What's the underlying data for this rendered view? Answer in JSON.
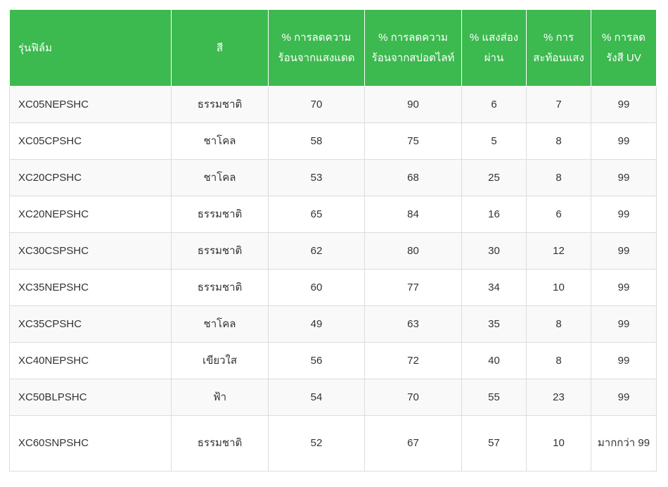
{
  "table": {
    "headers": [
      "รุ่นฟิล์ม",
      "สี",
      "% การลดความร้อนจากแสงแดด",
      "% การลดความร้อนจากสปอตไลท์",
      "% แสงส่องผ่าน",
      "% การสะท้อนแสง",
      "% การลดรังสี UV"
    ],
    "rows": [
      [
        "XC05NEPSHC",
        "ธรรมชาติ",
        "70",
        "90",
        "6",
        "7",
        "99"
      ],
      [
        "XC05CPSHC",
        "ชาโคล",
        "58",
        "75",
        "5",
        "8",
        "99"
      ],
      [
        "XC20CPSHC",
        "ชาโคล",
        "53",
        "68",
        "25",
        "8",
        "99"
      ],
      [
        "XC20NEPSHC",
        "ธรรมชาติ",
        "65",
        "84",
        "16",
        "6",
        "99"
      ],
      [
        "XC30CSPSHC",
        "ธรรมชาติ",
        "62",
        "80",
        "30",
        "12",
        "99"
      ],
      [
        "XC35NEPSHC",
        "ธรรมชาติ",
        "60",
        "77",
        "34",
        "10",
        "99"
      ],
      [
        "XC35CPSHC",
        "ชาโคล",
        "49",
        "63",
        "35",
        "8",
        "99"
      ],
      [
        "XC40NEPSHC",
        "เขียวใส",
        "56",
        "72",
        "40",
        "8",
        "99"
      ],
      [
        "XC50BLPSHC",
        "ฟ้า",
        "54",
        "70",
        "55",
        "23",
        "99"
      ],
      [
        "XC60SNPSHC",
        "ธรรมชาติ",
        "52",
        "67",
        "57",
        "10",
        "มากกว่า 99"
      ]
    ]
  },
  "colors": {
    "header_bg": "#3cb94f",
    "header_text": "#ffffff",
    "row_alt_bg": "#f9f9f9",
    "border": "#dcdcdc"
  }
}
